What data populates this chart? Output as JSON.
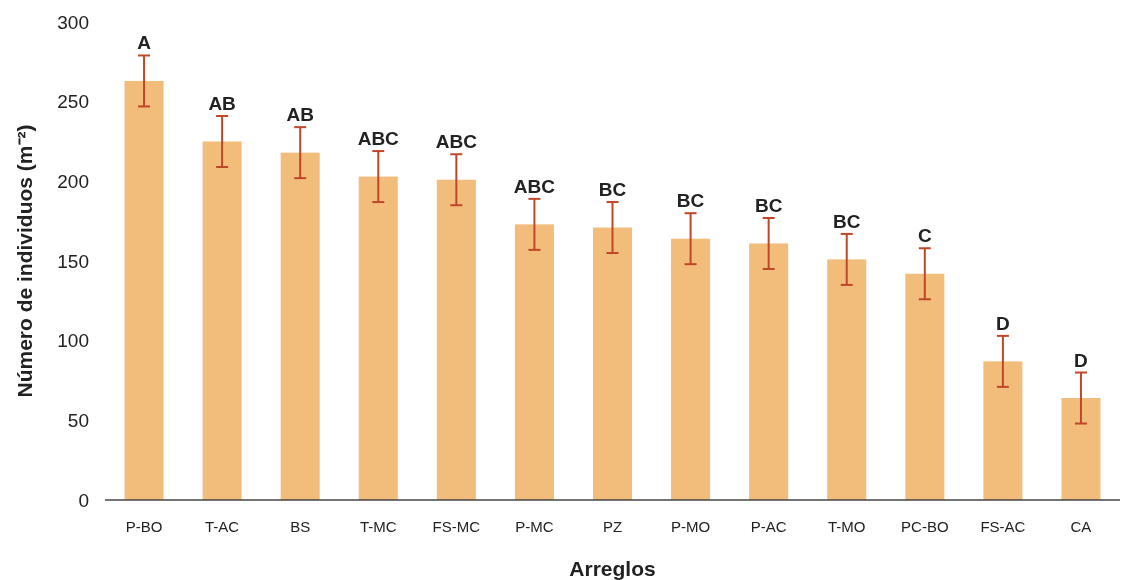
{
  "chart_data": {
    "type": "bar",
    "xlabel": "Arreglos",
    "ylabel": "Número de individuos (m⁻²)",
    "categories": [
      "P-BO",
      "T-AC",
      "BS",
      "T-MC",
      "FS-MC",
      "P-MC",
      "PZ",
      "P-MO",
      "P-AC",
      "T-MO",
      "PC-BO",
      "FS-AC",
      "CA"
    ],
    "values": [
      263,
      225,
      218,
      203,
      201,
      173,
      171,
      164,
      161,
      151,
      142,
      87,
      64
    ],
    "errors": [
      16,
      16,
      16,
      16,
      16,
      16,
      16,
      16,
      16,
      16,
      16,
      16,
      16
    ],
    "color": "#f2bd7b",
    "ylim": [
      0,
      300
    ],
    "yticks": [
      0,
      50,
      100,
      150,
      200,
      250,
      300
    ],
    "grid": false,
    "annotations": [
      {
        "text": "A",
        "x": "P-BO",
        "y": 279
      },
      {
        "text": "AB",
        "x": "T-AC",
        "y": 241
      },
      {
        "text": "AB",
        "x": "BS",
        "y": 234
      },
      {
        "text": "ABC",
        "x": "T-MC",
        "y": 219
      },
      {
        "text": "ABC",
        "x": "FS-MC",
        "y": 217
      },
      {
        "text": "ABC",
        "x": "P-MC",
        "y": 189
      },
      {
        "text": "BC",
        "x": "PZ",
        "y": 187
      },
      {
        "text": "BC",
        "x": "P-MO",
        "y": 180
      },
      {
        "text": "BC",
        "x": "P-AC",
        "y": 177
      },
      {
        "text": "BC",
        "x": "T-MO",
        "y": 167
      },
      {
        "text": "C",
        "x": "PC-BO",
        "y": 158
      },
      {
        "text": "D",
        "x": "FS-AC",
        "y": 103
      },
      {
        "text": "D",
        "x": "CA",
        "y": 80
      }
    ]
  }
}
